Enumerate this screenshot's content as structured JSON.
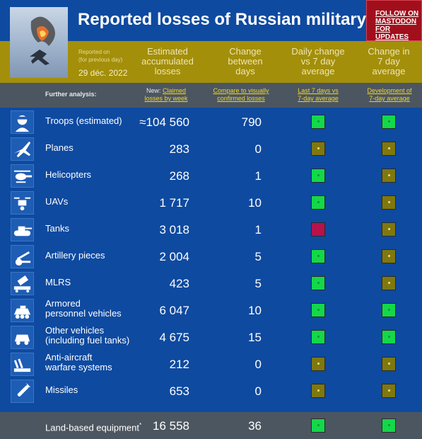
{
  "header": {
    "title": "Reported losses of Russian military",
    "follow_lines": [
      "FOLLOW ON",
      "MASTODON",
      "FOR UPDATES"
    ],
    "reported_on_line1": "Reported on",
    "reported_on_line2": "(for previous day)",
    "date": "29 déc. 2022"
  },
  "columns": {
    "estimated": [
      "Estimated",
      "accumulated",
      "losses"
    ],
    "change": [
      "Change",
      "between",
      "days"
    ],
    "daily": [
      "Daily change",
      "vs 7 day",
      "average"
    ],
    "change7": [
      "Change in",
      "7 day",
      "average"
    ]
  },
  "further": {
    "label": "Further analysis:",
    "new_prefix": "New: ",
    "claimed_link": [
      "Claimed",
      "losses by week"
    ],
    "compare_link": [
      "Compare to visually",
      "confirmed losses"
    ],
    "last7_link": [
      "Last 7 days vs",
      "7-day average"
    ],
    "development_link": [
      "Development of",
      "7-day average"
    ]
  },
  "rows": [
    {
      "icon": "soldier-icon",
      "name": [
        "Troops (estimated)"
      ],
      "value": "≈104 560",
      "change": "790",
      "daily": "green",
      "avg": "green"
    },
    {
      "icon": "plane-icon",
      "name": [
        "Planes"
      ],
      "value": "283",
      "change": "0",
      "daily": "olive",
      "avg": "olive"
    },
    {
      "icon": "helicopter-icon",
      "name": [
        "Helicopters"
      ],
      "value": "268",
      "change": "1",
      "daily": "green",
      "avg": "olive"
    },
    {
      "icon": "drone-icon",
      "name": [
        "UAVs"
      ],
      "value": "1 717",
      "change": "10",
      "daily": "green",
      "avg": "olive"
    },
    {
      "icon": "tank-icon",
      "name": [
        "Tanks"
      ],
      "value": "3 018",
      "change": "1",
      "daily": "red",
      "avg": "olive"
    },
    {
      "icon": "artillery-icon",
      "name": [
        "Artillery pieces"
      ],
      "value": "2 004",
      "change": "5",
      "daily": "green",
      "avg": "olive"
    },
    {
      "icon": "mlrs-icon",
      "name": [
        "MLRS"
      ],
      "value": "423",
      "change": "5",
      "daily": "green",
      "avg": "olive"
    },
    {
      "icon": "apc-icon",
      "name": [
        "Armored",
        "personnel vehicles"
      ],
      "value": "6 047",
      "change": "10",
      "daily": "green",
      "avg": "green"
    },
    {
      "icon": "vehicle-icon",
      "name": [
        "Other vehicles",
        "(including fuel tanks)"
      ],
      "value": "4 675",
      "change": "15",
      "daily": "green",
      "avg": "green"
    },
    {
      "icon": "anti-aircraft-icon",
      "name": [
        "Anti-aircraft",
        "warfare systems"
      ],
      "value": "212",
      "change": "0",
      "daily": "olive",
      "avg": "olive"
    },
    {
      "icon": "missile-icon",
      "name": [
        "Missiles"
      ],
      "value": "653",
      "change": "0",
      "daily": "olive",
      "avg": "olive"
    }
  ],
  "total": {
    "name": "Land-based equipment",
    "marker": "*",
    "value": "16 558",
    "change": "36",
    "daily": "green",
    "avg": "green"
  },
  "colors": {
    "blue": "#0e4aa0",
    "band": "#a38f0a",
    "grey": "#4c5660",
    "green": "#13d84a",
    "olive": "#7f7810",
    "red": "#b5134a",
    "follow": "#a10f1c"
  }
}
